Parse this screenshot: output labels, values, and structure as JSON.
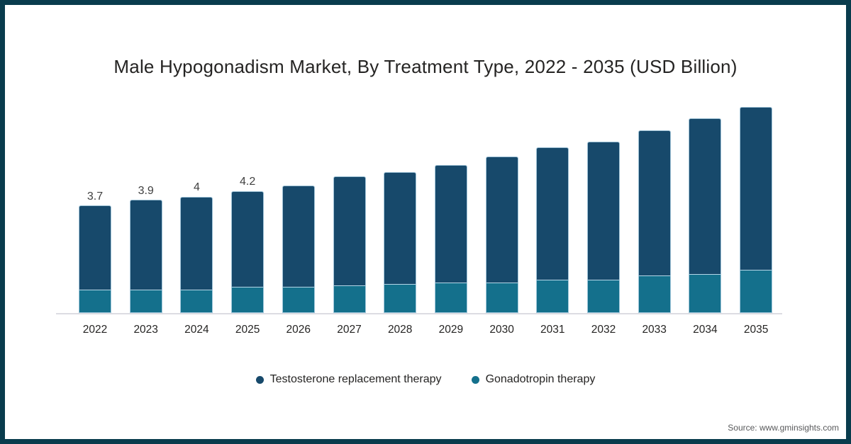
{
  "title": "Male Hypogonadism Market, By Treatment Type, 2022 - 2035 (USD Billion)",
  "source_note": "Source: www.gminsights.com",
  "colors": {
    "frame": "#093C4D",
    "axis_line": "#DCDCE2",
    "testosterone": "#17496B",
    "gonadotropin": "#14708C"
  },
  "legend": {
    "items": [
      {
        "label": "Testosterone replacement therapy",
        "color": "#17496B"
      },
      {
        "label": "Gonadotropin therapy",
        "color": "#14708C"
      }
    ]
  },
  "chart_data": {
    "type": "bar",
    "stacked": true,
    "title": "Male Hypogonadism Market, By Treatment Type, 2022 - 2035 (USD Billion)",
    "unit": "USD Billion",
    "categories": [
      "2022",
      "2023",
      "2024",
      "2025",
      "2026",
      "2027",
      "2028",
      "2029",
      "2030",
      "2031",
      "2032",
      "2033",
      "2034",
      "2035"
    ],
    "series": [
      {
        "name": "Testosterone replacement therapy",
        "color": "#17496B",
        "values": [
          2.9,
          3.1,
          3.2,
          3.3,
          3.5,
          3.75,
          3.85,
          4.05,
          4.35,
          4.55,
          4.75,
          5.0,
          5.35,
          5.6
        ]
      },
      {
        "name": "Gonadotropin therapy",
        "color": "#14708C",
        "values": [
          0.8,
          0.8,
          0.8,
          0.9,
          0.9,
          0.95,
          1.0,
          1.05,
          1.05,
          1.15,
          1.15,
          1.3,
          1.35,
          1.5
        ]
      }
    ],
    "totals": [
      3.7,
      3.9,
      4.0,
      4.2,
      4.4,
      4.7,
      4.85,
      5.1,
      5.4,
      5.7,
      5.9,
      6.3,
      6.7,
      7.1
    ],
    "value_labels": [
      "3.7",
      "3.9",
      "4",
      "4.2",
      "",
      "",
      "",
      "",
      "",
      "",
      "",
      "",
      "",
      ""
    ],
    "ylim": [
      0,
      7.5
    ],
    "gridlines": false,
    "y_axis_visible": false,
    "legend_position": "bottom"
  }
}
